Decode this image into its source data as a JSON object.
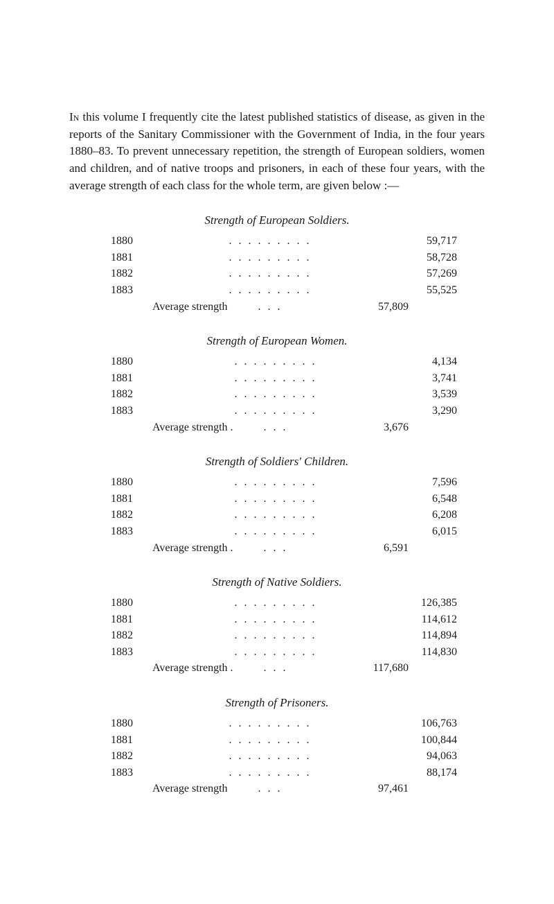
{
  "intro": {
    "first_word": "In",
    "text": " this volume I frequently cite the latest published statistics of disease, as given in the reports of the Sanitary Commissioner with the Government of India, in the four years 1880–83. To prevent unnecessary repetition, the strength of European soldiers, women and children, and of native troops and prisoners, in each of these four years, with the average strength of each class for the whole term, are given below :—"
  },
  "sections": [
    {
      "title": "Strength of European Soldiers.",
      "rows": [
        {
          "year": "1880",
          "value": "59,717"
        },
        {
          "year": "1881",
          "value": "58,728"
        },
        {
          "year": "1882",
          "value": "57,269"
        },
        {
          "year": "1883",
          "value": "55,525"
        }
      ],
      "avg_label": "Average strength",
      "avg_value": "57,809"
    },
    {
      "title": "Strength of European Women.",
      "rows": [
        {
          "year": "1880",
          "value": "4,134"
        },
        {
          "year": "1881",
          "value": "3,741"
        },
        {
          "year": "1882",
          "value": "3,539"
        },
        {
          "year": "1883",
          "value": "3,290"
        }
      ],
      "avg_label": "Average strength .",
      "avg_value": "3,676"
    },
    {
      "title": "Strength of Soldiers' Children.",
      "rows": [
        {
          "year": "1880",
          "value": "7,596"
        },
        {
          "year": "1881",
          "value": "6,548"
        },
        {
          "year": "1882",
          "value": "6,208"
        },
        {
          "year": "1883",
          "value": "6,015"
        }
      ],
      "avg_label": "Average strength .",
      "avg_value": "6,591"
    },
    {
      "title": "Strength of Native Soldiers.",
      "rows": [
        {
          "year": "1880",
          "value": "126,385"
        },
        {
          "year": "1881",
          "value": "114,612"
        },
        {
          "year": "1882",
          "value": "114,894"
        },
        {
          "year": "1883",
          "value": "114,830"
        }
      ],
      "avg_label": "Average strength .",
      "avg_value": "117,680"
    },
    {
      "title": "Strength of Prisoners.",
      "rows": [
        {
          "year": "1880",
          "value": "106,763"
        },
        {
          "year": "1881",
          "value": "100,844"
        },
        {
          "year": "1882",
          "value": "94,063"
        },
        {
          "year": "1883",
          "value": "88,174"
        }
      ],
      "avg_label": "Average strength",
      "avg_value": "97,461"
    }
  ],
  "dots": ".........",
  "avg_dots": "..."
}
